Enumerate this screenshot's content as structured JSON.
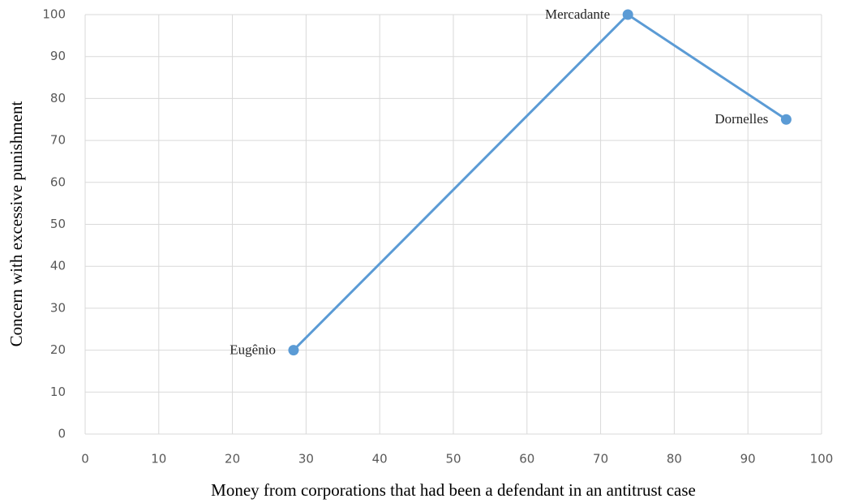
{
  "chart_data": {
    "type": "line",
    "x_label": "Money from corporations that had been a defendant in an antitrust case",
    "y_label": "Concern with excessive punishment",
    "x": [
      28.3,
      73.7,
      95.2
    ],
    "series": [
      {
        "color": "#5b9bd5",
        "values": [
          20,
          100,
          75
        ],
        "labels": [
          "Eugênio",
          "Mercadante",
          "Dornelles"
        ]
      }
    ],
    "xlim": [
      0,
      100
    ],
    "xticks": [
      0,
      10,
      20,
      30,
      40,
      50,
      60,
      70,
      80,
      90,
      100
    ],
    "ylim": [
      0,
      100
    ],
    "yticks": [
      0,
      10,
      20,
      30,
      40,
      50,
      60,
      70,
      80,
      90,
      100
    ],
    "grid": true
  }
}
